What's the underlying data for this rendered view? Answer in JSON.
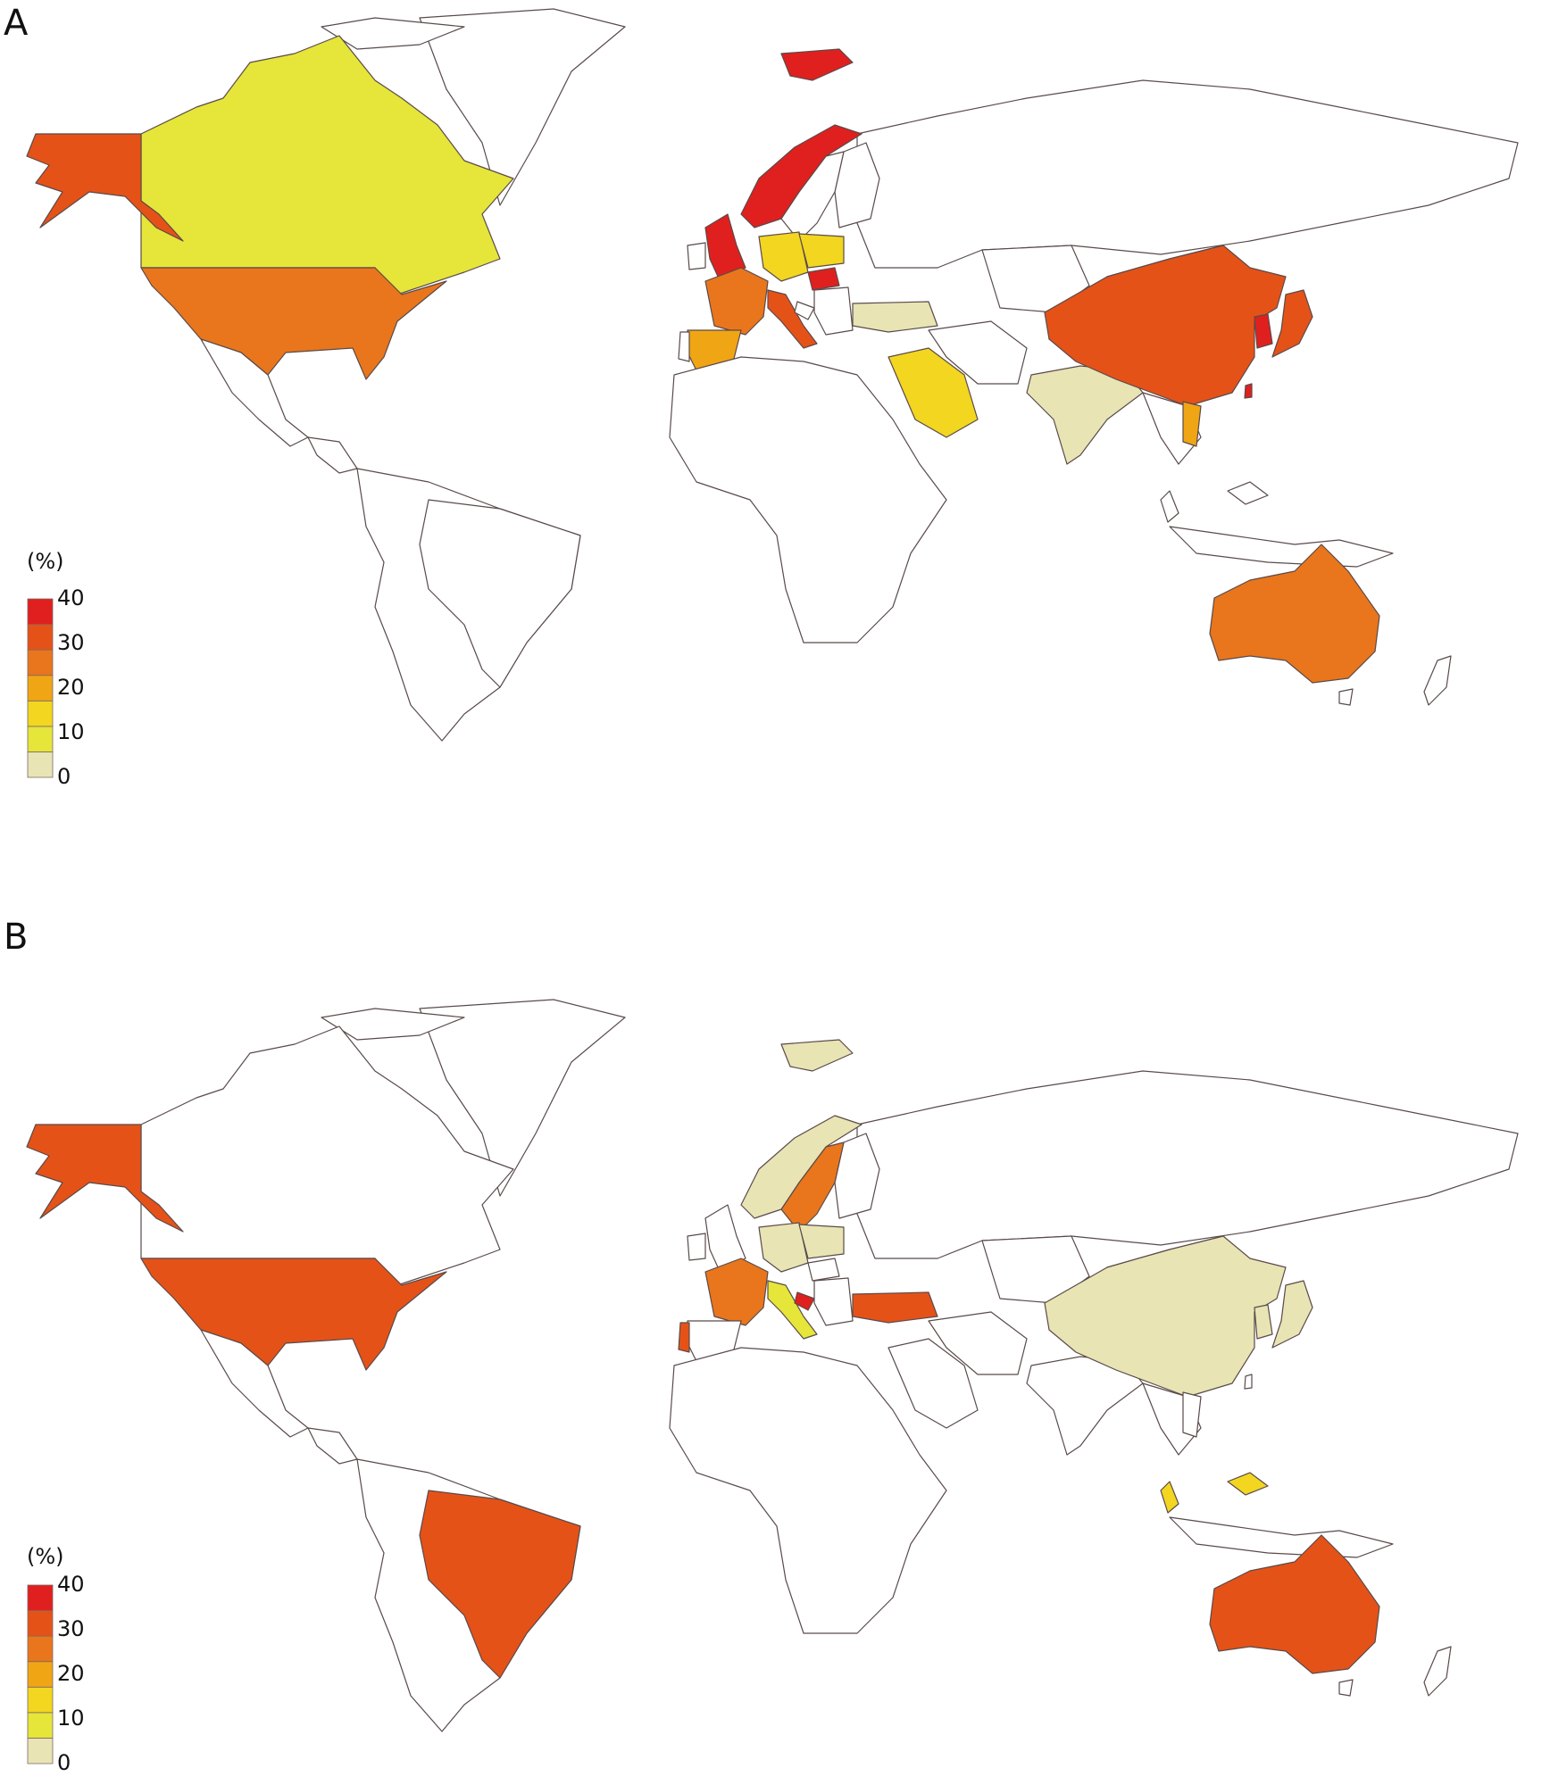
{
  "panels": [
    {
      "label": "A",
      "legend": {
        "unit": "(%)",
        "ticks": [
          "40",
          "30",
          "20",
          "10",
          "0"
        ]
      },
      "regions": [
        {
          "name": "alaska",
          "value": 30
        },
        {
          "name": "canada",
          "value": 8
        },
        {
          "name": "usa",
          "value": 28
        },
        {
          "name": "svalbard",
          "value": 40
        },
        {
          "name": "norway",
          "value": 40
        },
        {
          "name": "uk",
          "value": 40
        },
        {
          "name": "france",
          "value": 28
        },
        {
          "name": "spain",
          "value": 18
        },
        {
          "name": "italy",
          "value": 33
        },
        {
          "name": "germany",
          "value": 10
        },
        {
          "name": "poland",
          "value": 16
        },
        {
          "name": "hungary",
          "value": 40
        },
        {
          "name": "turkey",
          "value": 2
        },
        {
          "name": "saudi-arabia",
          "value": 16
        },
        {
          "name": "india",
          "value": 2
        },
        {
          "name": "china",
          "value": 33
        },
        {
          "name": "vietnam",
          "value": 18
        },
        {
          "name": "korea",
          "value": 38
        },
        {
          "name": "japan",
          "value": 36
        },
        {
          "name": "taiwan",
          "value": 38
        },
        {
          "name": "australia",
          "value": 28
        }
      ]
    },
    {
      "label": "B",
      "legend": {
        "unit": "(%)",
        "ticks": [
          "40",
          "30",
          "20",
          "10",
          "0"
        ]
      },
      "regions": [
        {
          "name": "alaska",
          "value": 33
        },
        {
          "name": "usa",
          "value": 33
        },
        {
          "name": "brazil",
          "value": 33
        },
        {
          "name": "svalbard",
          "value": 2
        },
        {
          "name": "norway",
          "value": 3
        },
        {
          "name": "sweden",
          "value": 28
        },
        {
          "name": "france",
          "value": 28
        },
        {
          "name": "portugal",
          "value": 33
        },
        {
          "name": "italy",
          "value": 4
        },
        {
          "name": "germany",
          "value": 3
        },
        {
          "name": "poland",
          "value": 2
        },
        {
          "name": "croatia",
          "value": 40
        },
        {
          "name": "turkey",
          "value": 33
        },
        {
          "name": "china",
          "value": 2
        },
        {
          "name": "korea",
          "value": 3
        },
        {
          "name": "japan",
          "value": 2
        },
        {
          "name": "malaysia",
          "value": 12
        },
        {
          "name": "australia",
          "value": 33
        }
      ]
    }
  ],
  "colors": {
    "scale": [
      "#e8e4b4",
      "#e6e53a",
      "#f2d620",
      "#f0a514",
      "#e9761c",
      "#e55218",
      "#e0201e"
    ],
    "border": "#5a4a4a",
    "no_data": "#ffffff"
  }
}
